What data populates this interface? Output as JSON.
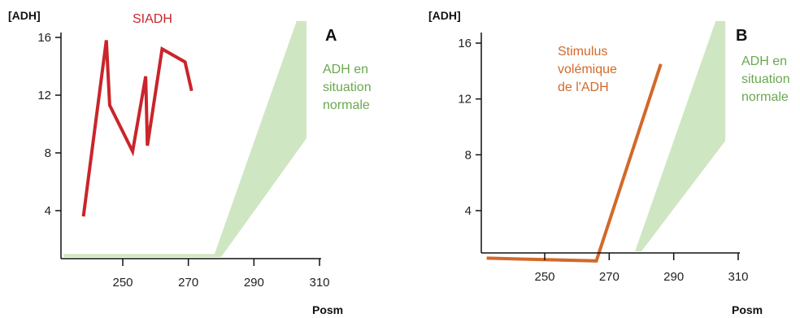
{
  "colors": {
    "normal_band": "#cfe6c2",
    "siadh_line": "#c9252b",
    "stimulus_line": "#d2692a",
    "normal_text": "#6aa84f",
    "axis": "#111111"
  },
  "chart_data": [
    {
      "type": "line",
      "panel_label": "A",
      "ylabel": "[ADH]",
      "xlabel": "Posm",
      "xticks": [
        "250",
        "270",
        "290",
        "310"
      ],
      "yticks": [
        "4",
        "8",
        "12",
        "16"
      ],
      "xlim": [
        232,
        310
      ],
      "ylim": [
        0,
        16.5
      ],
      "normal_band_label": [
        "ADH en",
        "situation",
        "normale"
      ],
      "normal_band": {
        "lower": [
          [
            232,
            0.5
          ],
          [
            280,
            0.5
          ],
          [
            306,
            9.0
          ],
          [
            306,
            16.5
          ]
        ],
        "upper": [
          [
            232,
            1.0
          ],
          [
            278,
            1.0
          ],
          [
            303,
            16.5
          ]
        ]
      },
      "series": [
        {
          "name": "SIADH",
          "x": [
            238,
            245,
            246,
            253,
            257,
            257.5,
            262,
            269,
            271
          ],
          "y": [
            3.6,
            15.8,
            11.3,
            8.1,
            13.3,
            8.5,
            15.2,
            14.3,
            12.3
          ]
        }
      ]
    },
    {
      "type": "line",
      "panel_label": "B",
      "ylabel": "[ADH]",
      "xlabel": "Posm",
      "xticks": [
        "250",
        "270",
        "290",
        "310"
      ],
      "yticks": [
        "4",
        "8",
        "12",
        "16"
      ],
      "xlim": [
        232,
        310
      ],
      "ylim": [
        0,
        16.5
      ],
      "normal_band_label": [
        "ADH en",
        "situation",
        "normale"
      ],
      "normal_band": {
        "lower": [
          [
            232,
            0.5
          ],
          [
            280,
            0.5
          ],
          [
            306,
            9.0
          ],
          [
            306,
            16.5
          ]
        ],
        "upper": [
          [
            232,
            1.0
          ],
          [
            278,
            1.0
          ],
          [
            303,
            16.5
          ]
        ]
      },
      "series": [
        {
          "name": "Stimulus volémique de l'ADH",
          "label_lines": [
            "Stimulus",
            "volémique",
            "de l'ADH"
          ],
          "x": [
            232,
            266,
            286
          ],
          "y": [
            0.6,
            0.4,
            14.5
          ]
        }
      ]
    }
  ]
}
